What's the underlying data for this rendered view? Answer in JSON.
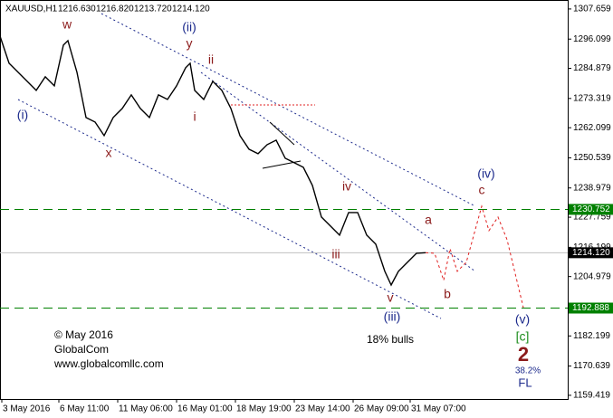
{
  "chart_data": {
    "type": "line",
    "title": "XAUUSD,H1",
    "ohlc": [
      "1216.630",
      "1216.820",
      "1213.720",
      "1214.120"
    ],
    "xlim": [
      0,
      627
    ],
    "xticks": [
      {
        "value": 2,
        "label": "3 May 2016"
      },
      {
        "value": 65,
        "label": "6 May 11:00"
      },
      {
        "value": 130,
        "label": "11 May 06:00"
      },
      {
        "value": 195,
        "label": "16 May 01:00"
      },
      {
        "value": 260,
        "label": "18 May 19:00"
      },
      {
        "value": 325,
        "label": "23 May 14:00"
      },
      {
        "value": 390,
        "label": "26 May 09:00"
      },
      {
        "value": 453,
        "label": "31 May 07:00"
      }
    ],
    "ylim": [
      1158.0,
      1311.1
    ],
    "yticks": [
      1307.659,
      1296.099,
      1284.879,
      1273.319,
      1262.099,
      1250.539,
      1238.979,
      1227.759,
      1216.199,
      1204.979,
      1182.199,
      1170.639,
      1159.419
    ],
    "grid": false,
    "series": [
      {
        "color": "#000000",
        "dash": false,
        "x": [
          0,
          10,
          20,
          30,
          40,
          50,
          60,
          70,
          75,
          85,
          95,
          105,
          115,
          125,
          135,
          145,
          155,
          165,
          175,
          185,
          195,
          205,
          210,
          215,
          225,
          235,
          245,
          255,
          265,
          275,
          285,
          295,
          305,
          315,
          325,
          335,
          345,
          355,
          365,
          375,
          385,
          395,
          405,
          415,
          425,
          432,
          440,
          450,
          460,
          470
        ],
        "values": [
          1297.24,
          1286.83,
          1283.35,
          1279.88,
          1276.41,
          1281.62,
          1278.15,
          1293.77,
          1295.51,
          1283.35,
          1265.99,
          1264.26,
          1259.05,
          1265.99,
          1269.47,
          1274.67,
          1269.47,
          1265.99,
          1274.67,
          1272.94,
          1278.15,
          1285.09,
          1286.83,
          1276.41,
          1272.94,
          1279.88,
          1276.41,
          1269.47,
          1259.05,
          1253.84,
          1252.11,
          1255.58,
          1257.31,
          1250.37,
          1248.63,
          1246.9,
          1239.95,
          1227.8,
          1224.33,
          1220.86,
          1229.54,
          1229.54,
          1220.86,
          1217.39,
          1206.97,
          1201.76,
          1206.97,
          1210.44,
          1213.92,
          1214.12
        ]
      },
      {
        "color": "#e02020",
        "dash": true,
        "x": [
          470,
          480,
          490,
          497,
          505,
          515,
          532,
          540,
          550,
          560,
          578
        ],
        "values": [
          1214.12,
          1213.92,
          1203.5,
          1215.65,
          1206.97,
          1210.44,
          1231.97,
          1222.6,
          1227.8,
          1219.12,
          1193.08
        ]
      }
    ],
    "levels": [
      {
        "value": 1230.752,
        "color": "#008000",
        "dash": true
      },
      {
        "value": 1214.12,
        "label": "1214.120",
        "color": "#000000",
        "dash": false
      },
      {
        "value": 1192.888,
        "color": "#008000",
        "dash": true
      }
    ],
    "annotations": [
      "w",
      "(ii)",
      "y",
      "ii",
      "i",
      "(i)",
      "x",
      "iv",
      "iii",
      "a",
      "b",
      "c",
      "(iv)",
      "v",
      "(iii)",
      "(v)",
      "[c]",
      "2",
      "38.2%",
      "FL",
      "18% bulls",
      "© May 2016",
      "GlobalCom",
      "www.globalcomllc.com"
    ]
  }
}
